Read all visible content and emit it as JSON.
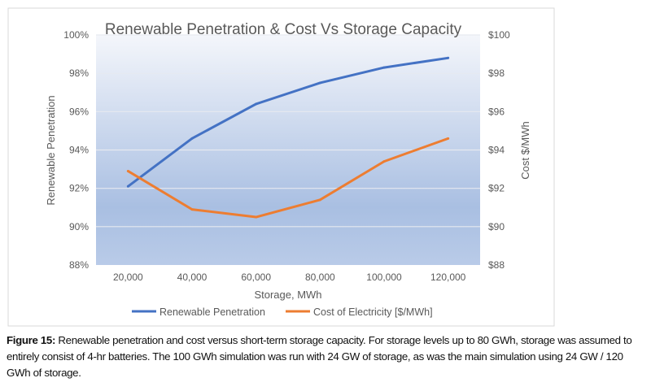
{
  "chart_data": {
    "type": "line",
    "title": "Renewable Penetration & Cost Vs Storage Capacity",
    "xlabel": "Storage, MWh",
    "ylabel": "Renewable Penetration",
    "y2label": "Cost $/MWh",
    "categories": [
      "20,000",
      "40,000",
      "60,000",
      "80,000",
      "100,000",
      "120,000"
    ],
    "ylim": [
      88,
      100
    ],
    "y2lim": [
      88,
      100
    ],
    "yticks": [
      "88%",
      "90%",
      "92%",
      "94%",
      "96%",
      "98%",
      "100%"
    ],
    "y2ticks": [
      "$88",
      "$90",
      "$92",
      "$94",
      "$96",
      "$98",
      "$100"
    ],
    "grid": true,
    "legend": "bottom",
    "series": [
      {
        "name": "Renewable Penetration",
        "axis": "left",
        "color": "#4472c4",
        "values": [
          92.1,
          94.6,
          96.4,
          97.5,
          98.3,
          98.8
        ]
      },
      {
        "name": "Cost of Electricity [$/MWh]",
        "axis": "right",
        "color": "#ed7d31",
        "values": [
          92.9,
          90.9,
          90.5,
          91.4,
          93.4,
          94.6
        ]
      }
    ]
  },
  "caption": {
    "label": "Figure 15:",
    "text": " Renewable penetration and cost versus short-term storage capacity. For storage levels up to 80 GWh, storage was assumed to entirely consist of 4-hr batteries. The 100 GWh simulation was run with 24 GW of storage, as was the main simulation using 24 GW / 120 GWh of storage."
  }
}
